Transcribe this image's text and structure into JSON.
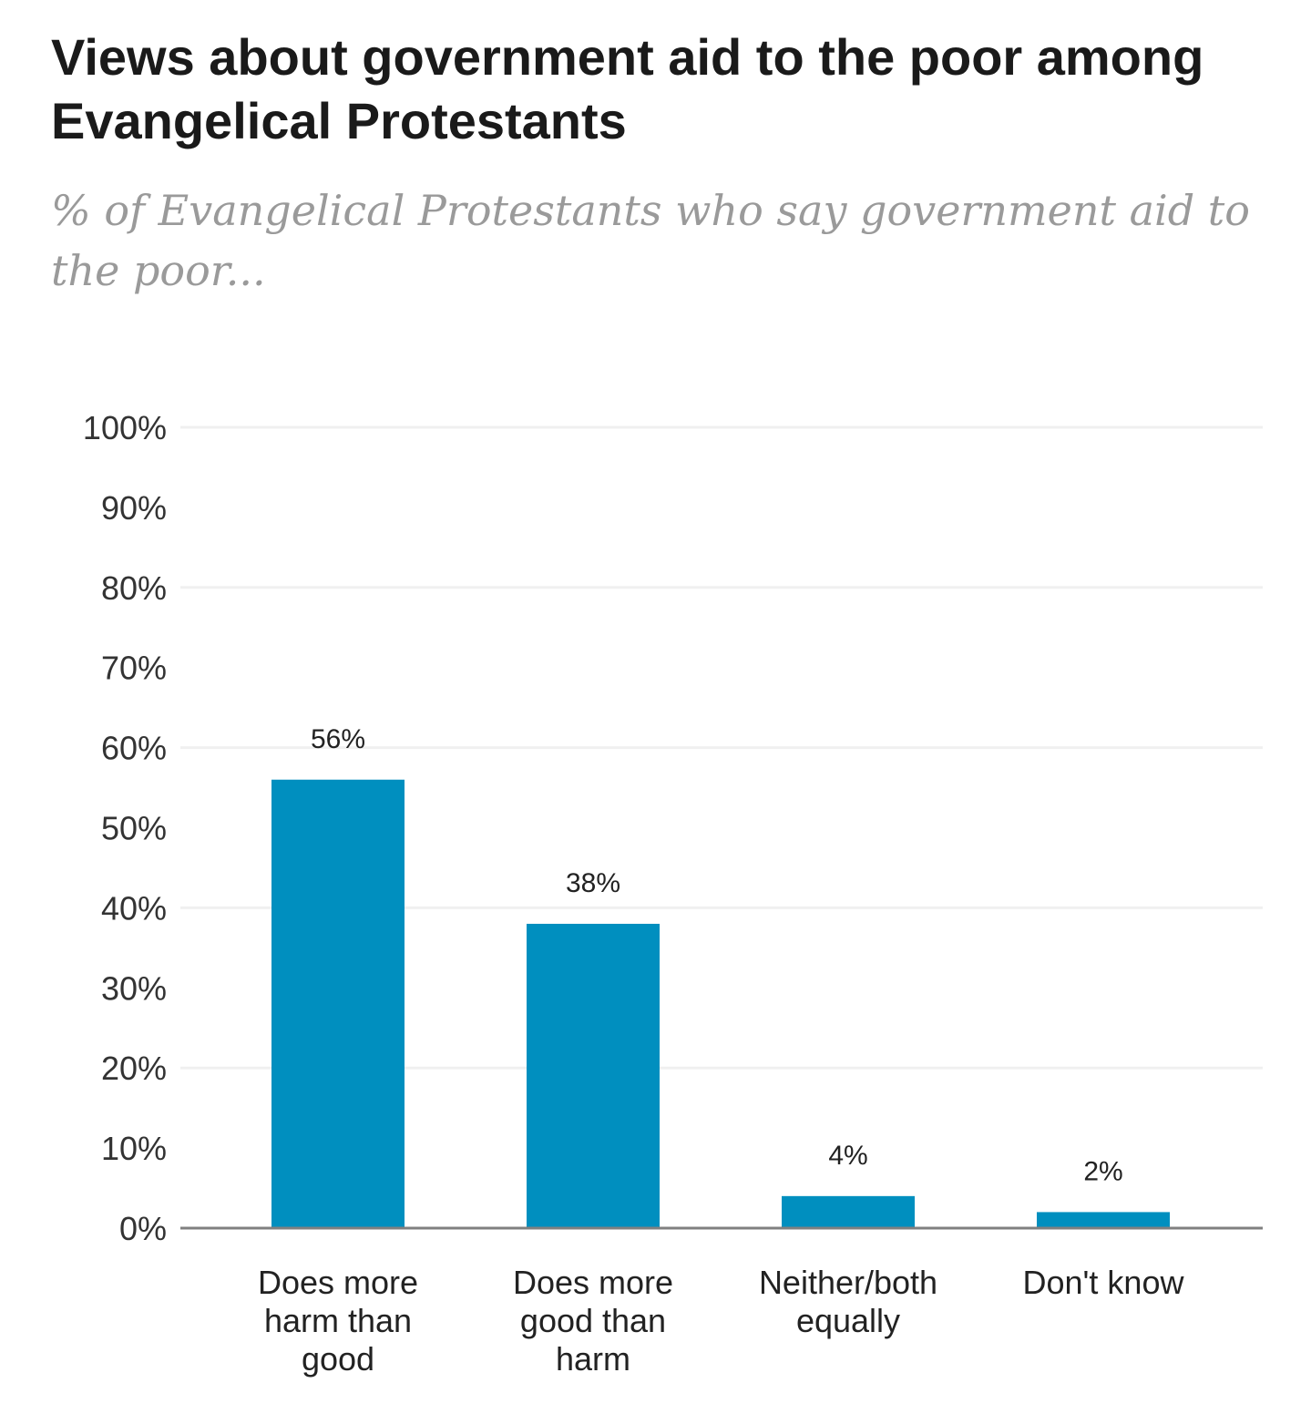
{
  "chart_data": {
    "type": "bar",
    "title": "Views about government aid to the poor among Evangelical Protestants",
    "subtitle": "% of Evangelical Protestants who say government aid to the poor...",
    "categories": [
      [
        "Does more",
        "harm than",
        "good"
      ],
      [
        "Does more",
        "good than",
        "harm"
      ],
      [
        "Neither/both",
        "equally"
      ],
      [
        "Don't know"
      ]
    ],
    "values": [
      56,
      38,
      4,
      2
    ],
    "value_labels": [
      "56%",
      "38%",
      "4%",
      "2%"
    ],
    "ylim": [
      0,
      100
    ],
    "yticks": [
      0,
      10,
      20,
      30,
      40,
      50,
      60,
      70,
      80,
      90,
      100
    ],
    "ytick_labels": [
      "0%",
      "10%",
      "20%",
      "30%",
      "40%",
      "50%",
      "60%",
      "70%",
      "80%",
      "90%",
      "100%"
    ],
    "gridlines_at": [
      20,
      40,
      60,
      80,
      100
    ],
    "xlabel": "",
    "ylabel": "",
    "bar_color": "#008fbf",
    "grid_color": "#f0f0f0",
    "axis_color": "#808080"
  }
}
